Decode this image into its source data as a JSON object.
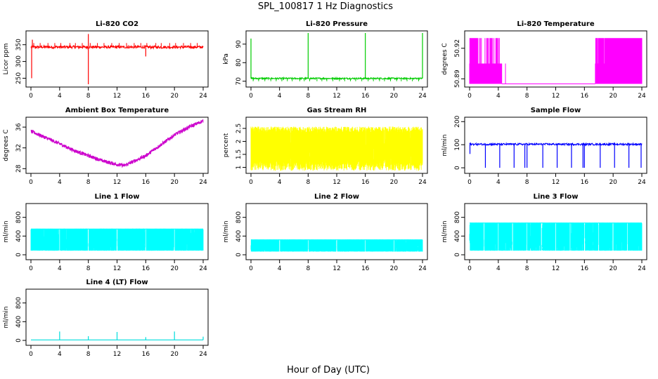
{
  "figure": {
    "title": "SPL_100817  1 Hz Diagnostics",
    "xlabel": "Hour of Day (UTC)"
  },
  "chart_data": [
    {
      "type": "line",
      "title": "Li-820 CO2",
      "ylabel": "Licor ppm",
      "color": "#ff0000",
      "xticks": [
        0,
        4,
        8,
        12,
        16,
        20,
        24
      ],
      "yticks": [
        250,
        300,
        350
      ],
      "xlim": [
        0,
        24
      ],
      "ylim": [
        230,
        385
      ],
      "baseline": 343,
      "noise": 4,
      "spikes": [
        [
          8.0,
          232
        ],
        [
          8.0,
          382
        ],
        [
          16.0,
          315
        ],
        [
          0.1,
          250
        ],
        [
          0.2,
          365
        ]
      ],
      "spike_period": 1.0,
      "spike_height": 12
    },
    {
      "type": "line",
      "title": "Li-820 Pressure",
      "ylabel": "kPa",
      "color": "#00cc00",
      "xticks": [
        0,
        4,
        8,
        12,
        16,
        20,
        24
      ],
      "yticks": [
        70,
        80,
        90
      ],
      "xlim": [
        0,
        24
      ],
      "ylim": [
        68,
        96
      ],
      "baseline": 71.5,
      "noise": 0.4,
      "spikes": [
        [
          0.0,
          93
        ],
        [
          8.0,
          96
        ],
        [
          16.0,
          96
        ],
        [
          24.0,
          96
        ]
      ],
      "spike_period": 0.8,
      "spike_height": -1.5
    },
    {
      "type": "line",
      "title": "Li-820 Temperature",
      "ylabel": "degrees C",
      "color": "#ff00ff",
      "xticks": [
        0,
        4,
        8,
        12,
        16,
        20,
        24
      ],
      "yticks": [
        50.89,
        50.92
      ],
      "xlim": [
        0,
        24
      ],
      "ylim": [
        50.884,
        50.935
      ],
      "baseline": 50.885,
      "noise": 0,
      "spikes": [],
      "spike_period": 0,
      "spike_height": 0
    },
    {
      "type": "line",
      "title": "Ambient Box Temperature",
      "ylabel": "degrees C",
      "color": "#cc00cc",
      "xticks": [
        0,
        4,
        8,
        12,
        16,
        20,
        24
      ],
      "yticks": [
        28,
        32,
        36
      ],
      "xlim": [
        0,
        24
      ],
      "ylim": [
        27.5,
        37.5
      ],
      "x": [
        0,
        2,
        4,
        6,
        8,
        10,
        12,
        13,
        14,
        16,
        18,
        20,
        22,
        24
      ],
      "y": [
        35.2,
        34.0,
        32.8,
        31.5,
        30.5,
        29.5,
        28.8,
        28.6,
        29.2,
        30.5,
        32.5,
        34.5,
        36.0,
        37.2
      ],
      "noise": 0.35
    },
    {
      "type": "area",
      "title": "Gas Stream RH",
      "ylabel": "percent",
      "color": "#ffff00",
      "xticks": [
        0,
        4,
        8,
        12,
        16,
        20,
        24
      ],
      "yticks": [
        1.0,
        1.5,
        2.0,
        2.5
      ],
      "xlim": [
        0,
        24
      ],
      "ylim": [
        0.85,
        2.85
      ],
      "upper": 2.45,
      "lower": 1.05,
      "noise": 0.12
    },
    {
      "type": "line",
      "title": "Sample Flow",
      "ylabel": "ml/min",
      "color": "#0000ff",
      "xticks": [
        0,
        4,
        8,
        12,
        16,
        20,
        24
      ],
      "yticks": [
        0,
        100,
        200
      ],
      "xlim": [
        0,
        24
      ],
      "ylim": [
        -15,
        210
      ],
      "baseline": 102,
      "noise": 4,
      "spikes": [
        [
          0.05,
          60
        ],
        [
          2.2,
          0
        ],
        [
          4.2,
          0
        ],
        [
          6.2,
          0
        ],
        [
          7.7,
          0
        ],
        [
          8.0,
          0
        ],
        [
          10.2,
          0
        ],
        [
          12.2,
          0
        ],
        [
          14.2,
          0
        ],
        [
          15.8,
          0
        ],
        [
          16.0,
          0
        ],
        [
          18.2,
          0
        ],
        [
          20.2,
          0
        ],
        [
          22.2,
          0
        ],
        [
          23.9,
          0
        ]
      ],
      "spike_period": 0,
      "spike_height": 0
    },
    {
      "type": "area",
      "title": "Line 1 Flow",
      "ylabel": "ml/min",
      "color": "#00ffff",
      "xticks": [
        0,
        4,
        8,
        12,
        16,
        20,
        24
      ],
      "yticks": [
        0,
        400,
        800
      ],
      "xlim": [
        0,
        24
      ],
      "ylim": [
        -60,
        1050
      ],
      "upper": 550,
      "lower": 90,
      "noise": 8,
      "gaps": [
        4,
        8,
        12,
        16,
        20
      ]
    },
    {
      "type": "area",
      "title": "Line 2 Flow",
      "ylabel": "ml/min",
      "color": "#00ffff",
      "xticks": [
        0,
        4,
        8,
        12,
        16,
        20,
        24
      ],
      "yticks": [
        0,
        400,
        800
      ],
      "xlim": [
        0,
        24
      ],
      "ylim": [
        -60,
        1050
      ],
      "upper": 320,
      "lower": 70,
      "noise": 8,
      "gaps": [
        4,
        8,
        12,
        16,
        20
      ]
    },
    {
      "type": "area",
      "title": "Line 3 Flow",
      "ylabel": "ml/min",
      "color": "#00ffff",
      "xticks": [
        0,
        4,
        8,
        12,
        16,
        20,
        24
      ],
      "yticks": [
        0,
        400,
        800
      ],
      "xlim": [
        0,
        24
      ],
      "ylim": [
        -60,
        1050
      ],
      "upper": 680,
      "lower": 90,
      "noise": 8,
      "gaps": [
        2,
        4,
        6,
        8,
        10,
        12,
        14,
        16,
        18,
        20,
        22
      ]
    },
    {
      "type": "line",
      "title": "Line 4 (LT) Flow",
      "ylabel": "ml/min",
      "color": "#00dddd",
      "xticks": [
        0,
        4,
        8,
        12,
        16,
        20,
        24
      ],
      "yticks": [
        0,
        400,
        800
      ],
      "xlim": [
        0,
        24
      ],
      "ylim": [
        -60,
        1050
      ],
      "baseline": 10,
      "noise": 0,
      "spikes": [
        [
          4.0,
          190
        ],
        [
          8.0,
          90
        ],
        [
          12.0,
          180
        ],
        [
          16.0,
          70
        ],
        [
          20.0,
          190
        ],
        [
          24.0,
          80
        ]
      ],
      "spike_period": 0,
      "spike_height": 0
    }
  ]
}
